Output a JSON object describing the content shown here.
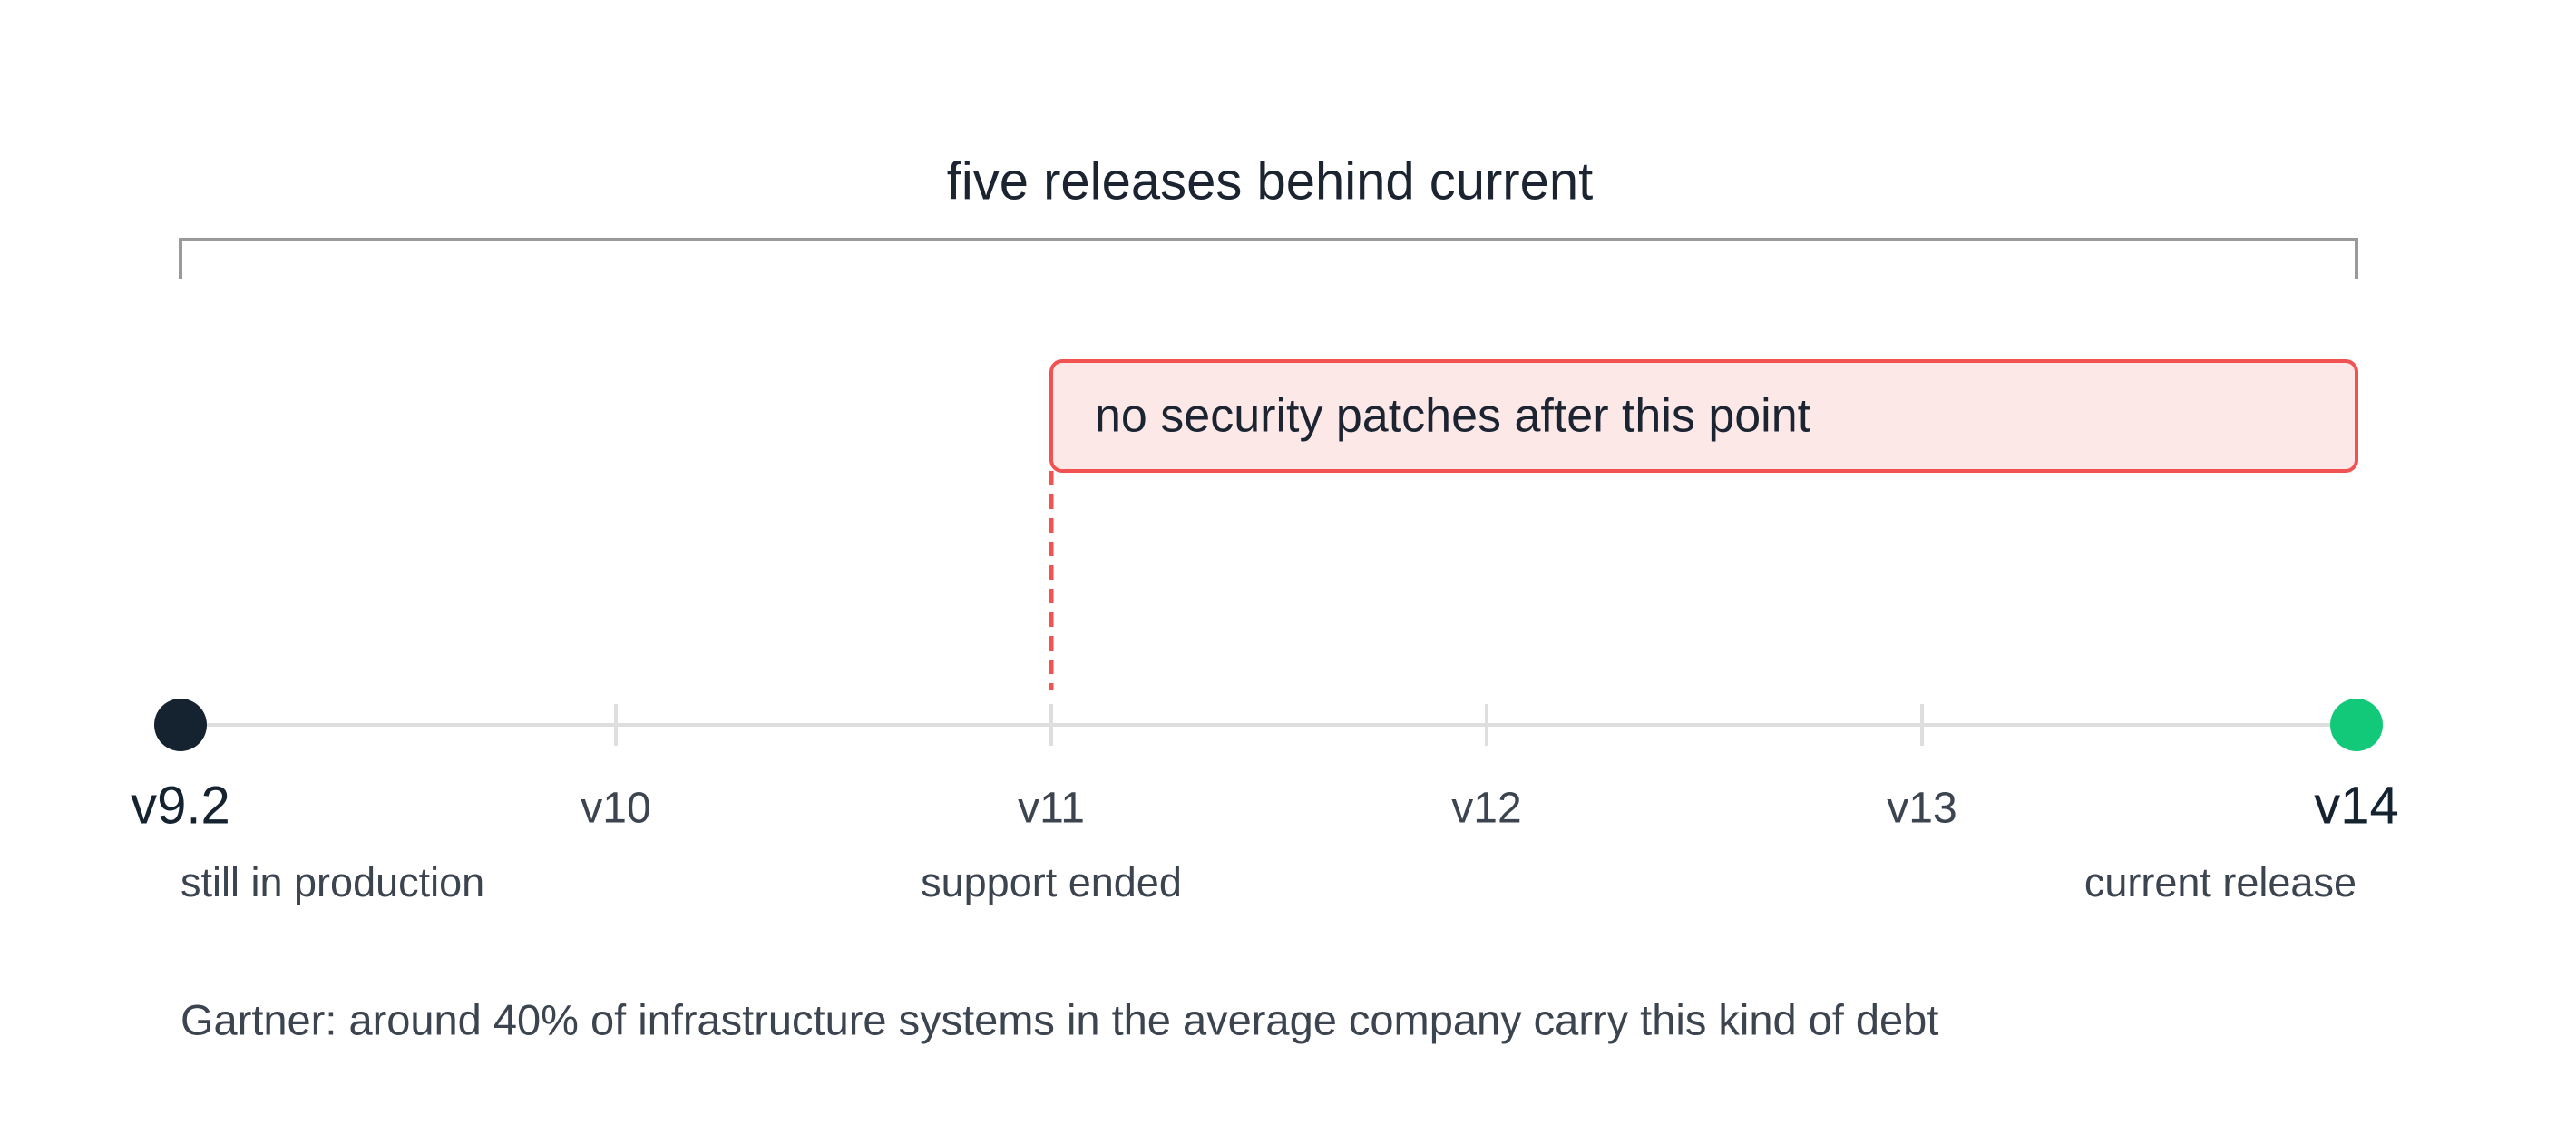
{
  "title": "five releases behind current",
  "callout": "no security patches after this point",
  "milestones": [
    {
      "version": "v9.2",
      "note": "still in production"
    },
    {
      "version": "v10"
    },
    {
      "version": "v11",
      "note": "support ended"
    },
    {
      "version": "v12"
    },
    {
      "version": "v13"
    },
    {
      "version": "v14",
      "note": "current release"
    }
  ],
  "footnote": "Gartner: around 40% of infrastructure systems in the average company carry this kind of debt"
}
